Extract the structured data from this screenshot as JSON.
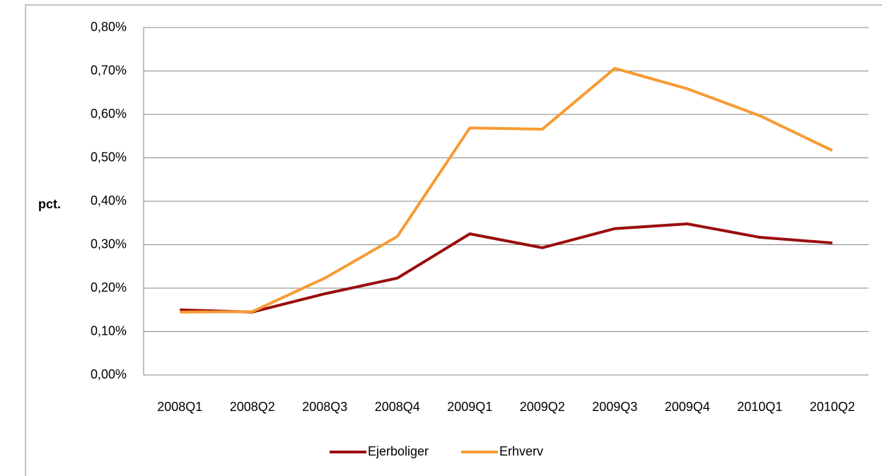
{
  "chart_data": {
    "type": "line",
    "ylabel": "pct.",
    "categories": [
      "2008Q1",
      "2008Q2",
      "2008Q3",
      "2008Q4",
      "2009Q1",
      "2009Q2",
      "2009Q3",
      "2009Q4",
      "2010Q1",
      "2010Q2"
    ],
    "series": [
      {
        "name": "Ejerboliger",
        "color": "#9b0d0d",
        "values": [
          0.15,
          0.145,
          0.187,
          0.223,
          0.325,
          0.293,
          0.337,
          0.348,
          0.317,
          0.304
        ]
      },
      {
        "name": "Erhverv",
        "color": "#f79b34",
        "values": [
          0.145,
          0.146,
          0.223,
          0.319,
          0.569,
          0.566,
          0.706,
          0.659,
          0.597,
          0.517
        ]
      }
    ],
    "ylim": [
      0,
      0.8
    ],
    "yticks": [
      {
        "value": 0,
        "label": "0,00%"
      },
      {
        "value": 0.1,
        "label": "0,10%"
      },
      {
        "value": 0.2,
        "label": "0,20%"
      },
      {
        "value": 0.3,
        "label": "0,30%"
      },
      {
        "value": 0.4,
        "label": "0,40%"
      },
      {
        "value": 0.5,
        "label": "0,50%"
      },
      {
        "value": 0.6,
        "label": "0,60%"
      },
      {
        "value": 0.7,
        "label": "0,70%"
      },
      {
        "value": 0.8,
        "label": "0,80%"
      }
    ],
    "grid": true,
    "legend": "bottom"
  }
}
